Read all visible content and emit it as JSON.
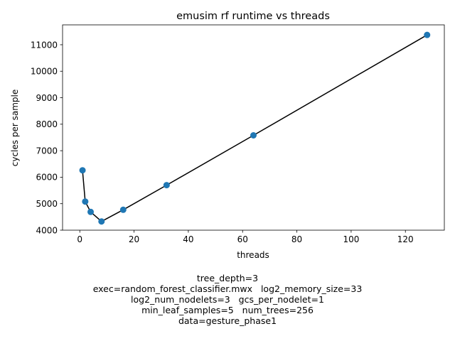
{
  "chart_data": {
    "type": "scatter",
    "title": "emusim rf runtime vs threads",
    "xlabel": "threads",
    "ylabel": "cycles per sample",
    "xlim": [
      -6.35,
      134.35
    ],
    "ylim": [
      4000,
      11750
    ],
    "xticks": [
      "0",
      "20",
      "40",
      "60",
      "80",
      "100",
      "120"
    ],
    "yticks": [
      "4000",
      "5000",
      "6000",
      "7000",
      "8000",
      "9000",
      "10000",
      "11000"
    ],
    "grid": false,
    "x": [
      1,
      2,
      4,
      8,
      16,
      32,
      64,
      128
    ],
    "y": [
      6260,
      5080,
      4690,
      4330,
      4770,
      5700,
      7580,
      11370
    ],
    "point_color": "#1f77b4",
    "line_color": "#000000"
  },
  "caption": [
    "tree_depth=3",
    "exec=random_forest_classifier.mwx   log2_memory_size=33",
    "log2_num_nodelets=3   gcs_per_nodelet=1",
    "min_leaf_samples=5   num_trees=256",
    "data=gesture_phase1"
  ]
}
